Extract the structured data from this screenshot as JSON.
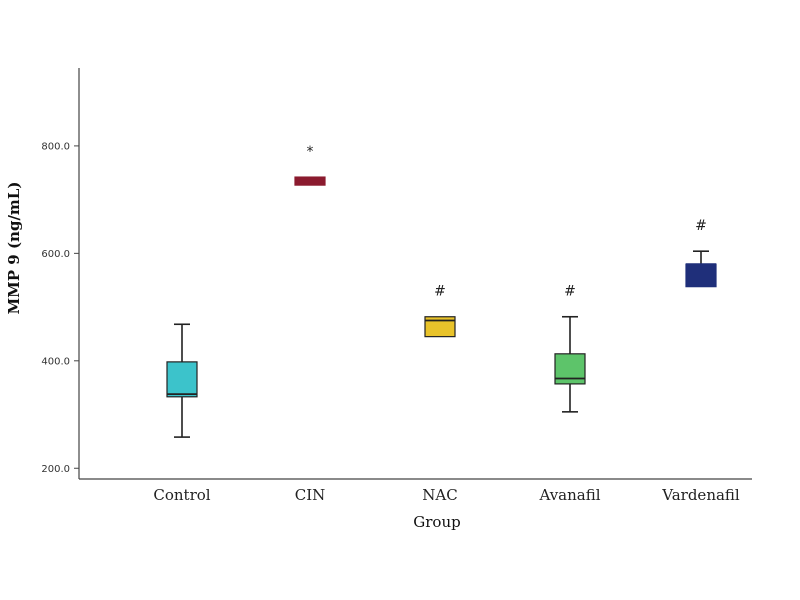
{
  "chart_data": {
    "type": "box",
    "xlabel": "Group",
    "ylabel": "MMP 9 (ng/mL)",
    "ylim": [
      180,
      945
    ],
    "yticks": [
      200,
      400,
      600,
      800
    ],
    "ytick_labels": [
      "200.0",
      "400.0",
      "600.0",
      "800.0"
    ],
    "grid": false,
    "legend": "none",
    "categories": [
      "Control",
      "CIN",
      "NAC",
      "Avanafil",
      "Vardenafil"
    ],
    "boxes": [
      {
        "category": "Control",
        "whisker_low": 258,
        "q1": 333,
        "median": 338,
        "q3": 398,
        "whisker_high": 468,
        "color": "#3cc3cb",
        "annotation": ""
      },
      {
        "category": "CIN",
        "whisker_low": 727,
        "q1": 727,
        "median": 735,
        "q3": 742,
        "whisker_high": 742,
        "color": "#8b1a2e",
        "annotation": "*"
      },
      {
        "category": "NAC",
        "whisker_low": 445,
        "q1": 445,
        "median": 475,
        "q3": 482,
        "whisker_high": 482,
        "color": "#e9c32a",
        "annotation": "#"
      },
      {
        "category": "Avanafil",
        "whisker_low": 305,
        "q1": 357,
        "median": 367,
        "q3": 413,
        "whisker_high": 482,
        "color": "#5dc46a",
        "annotation": "#"
      },
      {
        "category": "Vardenafil",
        "whisker_low": 538,
        "q1": 538,
        "median": 580,
        "q3": 580,
        "whisker_high": 604,
        "color": "#1f2f7a",
        "annotation": "#"
      }
    ]
  }
}
